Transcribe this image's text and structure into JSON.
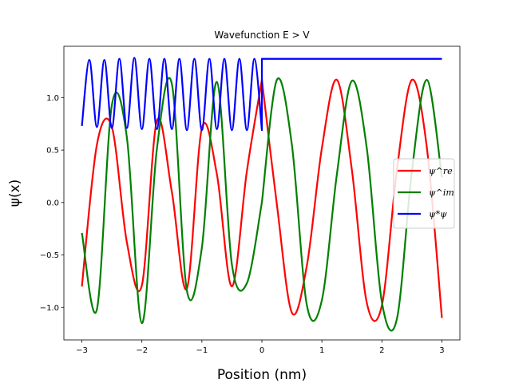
{
  "chart_data": {
    "type": "line",
    "title": "Wavefunction E > V",
    "xlabel": "Position (nm)",
    "ylabel": "ψ(x)",
    "xlim": [
      -3.3,
      3.3
    ],
    "ylim": [
      -1.31,
      1.49
    ],
    "xticks": [
      -3,
      -2,
      -1,
      0,
      1,
      2,
      3
    ],
    "xtick_labels": [
      "−3",
      "−2",
      "−1",
      "0",
      "1",
      "2",
      "3"
    ],
    "yticks": [
      -1.0,
      -0.5,
      0.0,
      0.5,
      1.0
    ],
    "ytick_labels": [
      "−1.0",
      "−0.5",
      "0.0",
      "0.5",
      "1.0"
    ],
    "grid": false,
    "legend_position": "center-right",
    "legend": [
      "ψ^re",
      "ψ^im",
      "ψ*ψ"
    ],
    "series": [
      {
        "name": "ψ^re",
        "color": "#ff0000",
        "model": "piecewise-wave",
        "x_left": [
          -3.0,
          -2.75,
          -2.5,
          -2.25,
          -2.0,
          -1.75,
          -1.5,
          -1.25,
          -1.0,
          -0.75,
          -0.5,
          -0.25,
          0.0
        ],
        "y_left": [
          -0.8,
          0.55,
          0.72,
          -0.38,
          -0.79,
          0.78,
          0.1,
          -0.82,
          0.71,
          0.27,
          -0.8,
          0.3,
          1.17
        ],
        "x_right": [
          0.0,
          0.25,
          0.5,
          0.75,
          1.0,
          1.25,
          1.5,
          1.75,
          2.0,
          2.25,
          2.5,
          2.75,
          3.0
        ],
        "y_right": [
          1.17,
          -0.02,
          -1.05,
          -0.6,
          0.52,
          1.17,
          0.31,
          -0.96,
          -0.98,
          0.31,
          1.17,
          0.52,
          -1.1
        ]
      },
      {
        "name": "ψ^im",
        "color": "#008000",
        "model": "piecewise-wave",
        "x_left": [
          -3.0,
          -2.75,
          -2.5,
          -2.25,
          -2.0,
          -1.75,
          -1.5,
          -1.25,
          -1.0,
          -0.75,
          -0.5,
          -0.25,
          0.0
        ],
        "y_left": [
          -0.29,
          -1.02,
          0.93,
          0.62,
          -1.15,
          0.51,
          1.13,
          -0.84,
          -0.43,
          1.15,
          -0.59,
          -0.77,
          0.0
        ],
        "x_right": [
          0.0,
          0.25,
          0.5,
          0.75,
          1.0,
          1.25,
          1.5,
          1.75,
          2.0,
          2.25,
          2.5,
          2.75,
          3.0
        ],
        "y_right": [
          0.0,
          1.17,
          0.55,
          -0.98,
          -0.93,
          0.27,
          1.16,
          0.51,
          -0.95,
          -1.11,
          0.3,
          1.17,
          0.24
        ]
      },
      {
        "name": "ψ*ψ",
        "color": "#0000ff",
        "model": "piecewise-density",
        "x_left": [
          -3.0,
          -2.875,
          -2.75,
          -2.625,
          -2.5,
          -2.375,
          -2.25,
          -2.125,
          -2.0,
          -1.875,
          -1.75,
          -1.625,
          -1.5,
          -1.375,
          -1.25,
          -1.125,
          -1.0,
          -0.875,
          -0.75,
          -0.625,
          -0.5,
          -0.375,
          -0.25,
          -0.125,
          0.0
        ],
        "y_left": [
          0.73,
          1.36,
          0.72,
          1.36,
          0.71,
          1.37,
          0.71,
          1.38,
          0.7,
          1.37,
          0.7,
          1.37,
          0.7,
          1.37,
          0.69,
          1.37,
          0.69,
          1.37,
          0.7,
          1.37,
          0.69,
          1.37,
          0.69,
          1.37,
          0.69
        ],
        "x_right": [
          0.0,
          3.0
        ],
        "y_right": [
          1.37,
          1.37
        ]
      }
    ]
  }
}
